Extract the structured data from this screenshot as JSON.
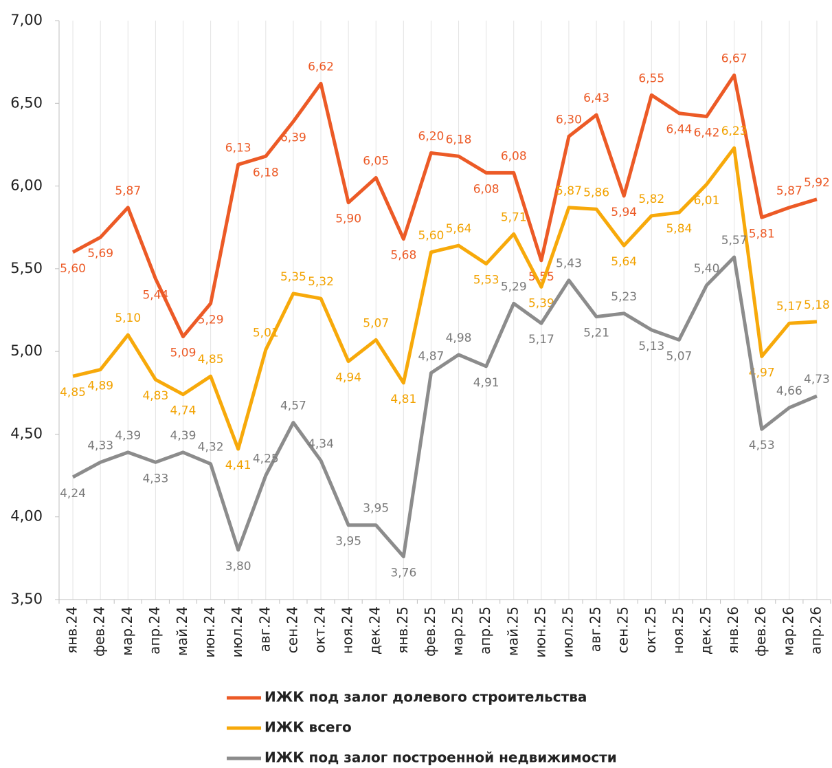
{
  "chart_data": {
    "type": "line",
    "categories": [
      "янв.24",
      "фев.24",
      "мар.24",
      "апр.24",
      "май.24",
      "июн.24",
      "июл.24",
      "авг.24",
      "сен.24",
      "окт.24",
      "ноя.24",
      "дек.24",
      "янв.25",
      "фев.25",
      "мар.25",
      "апр.25",
      "май.25",
      "июн.25",
      "июл.25",
      "авг.25",
      "сен.25",
      "окт.25",
      "ноя.25",
      "дек.25",
      "янв.26",
      "фев.26",
      "мар.26",
      "апр.26"
    ],
    "series": [
      {
        "name": "ИЖК под залог долевого строительства",
        "color": "#ec5a26",
        "values": [
          5.6,
          5.69,
          5.87,
          5.44,
          5.09,
          5.29,
          6.13,
          6.18,
          6.39,
          6.62,
          5.9,
          6.05,
          5.68,
          6.2,
          6.18,
          6.08,
          6.08,
          5.55,
          6.3,
          6.43,
          5.94,
          6.55,
          6.44,
          6.42,
          6.67,
          5.81,
          5.87,
          5.92
        ],
        "value_labels": [
          "5,60",
          "5,69",
          "5,87",
          "5,44",
          "5,09",
          "5,29",
          "6,13",
          "6,18",
          "6,39",
          "6,62",
          "5,90",
          "6,05",
          "5,68",
          "6,20",
          "6,18",
          "6,08",
          "6,08",
          "5,55",
          "6,30",
          "6,43",
          "5,94",
          "6,55",
          "6,44",
          "6,42",
          "6,67",
          "5,81",
          "5,87",
          "5,92"
        ]
      },
      {
        "name": "ИЖК всего",
        "color": "#f7a90a",
        "values": [
          4.85,
          4.89,
          5.1,
          4.83,
          4.74,
          4.85,
          4.41,
          5.01,
          5.35,
          5.32,
          4.94,
          5.07,
          4.81,
          5.6,
          5.64,
          5.53,
          5.71,
          5.39,
          5.87,
          5.86,
          5.64,
          5.82,
          5.84,
          6.01,
          6.23,
          4.97,
          5.17,
          5.18
        ],
        "value_labels": [
          "4,85",
          "4,89",
          "5,10",
          "4,83",
          "4,74",
          "4,85",
          "4,41",
          "5,01",
          "5,35",
          "5,32",
          "4,94",
          "5,07",
          "4,81",
          "5,60",
          "5,64",
          "5,53",
          "5,71",
          "5,39",
          "5,87",
          "5,86",
          "5,64",
          "5,82",
          "5,84",
          "6,01",
          "6,23",
          "4,97",
          "5,17",
          "5,18"
        ]
      },
      {
        "name": "ИЖК под залог построенной  недвижимости",
        "color": "#8c8c8c",
        "values": [
          4.24,
          4.33,
          4.39,
          4.33,
          4.39,
          4.32,
          3.8,
          4.25,
          4.57,
          4.34,
          3.95,
          3.95,
          3.76,
          4.87,
          4.98,
          4.91,
          5.29,
          5.17,
          5.43,
          5.21,
          5.23,
          5.13,
          5.07,
          5.4,
          5.57,
          4.53,
          4.66,
          4.73
        ],
        "value_labels": [
          "4,24",
          "4,33",
          "4,39",
          "4,33",
          "4,39",
          "4,32",
          "3,80",
          "4,25",
          "4,57",
          "4,34",
          "3,95",
          "3,95",
          "3,76",
          "4,87",
          "4,98",
          "4,91",
          "5,29",
          "5,17",
          "5,43",
          "5,21",
          "5,23",
          "5,13",
          "5,07",
          "5,40",
          "5,57",
          "4,53",
          "4,66",
          "4,73"
        ]
      }
    ],
    "ylim": [
      3.5,
      7.0
    ],
    "yticks": [
      {
        "value": 3.5,
        "label": "3,50"
      },
      {
        "value": 4.0,
        "label": "4,00"
      },
      {
        "value": 4.5,
        "label": "4,50"
      },
      {
        "value": 5.0,
        "label": "5,00"
      },
      {
        "value": 5.5,
        "label": "5,50"
      },
      {
        "value": 6.0,
        "label": "6,00"
      },
      {
        "value": 6.5,
        "label": "6,50"
      },
      {
        "value": 7.0,
        "label": "7,00"
      }
    ],
    "grid": true
  }
}
